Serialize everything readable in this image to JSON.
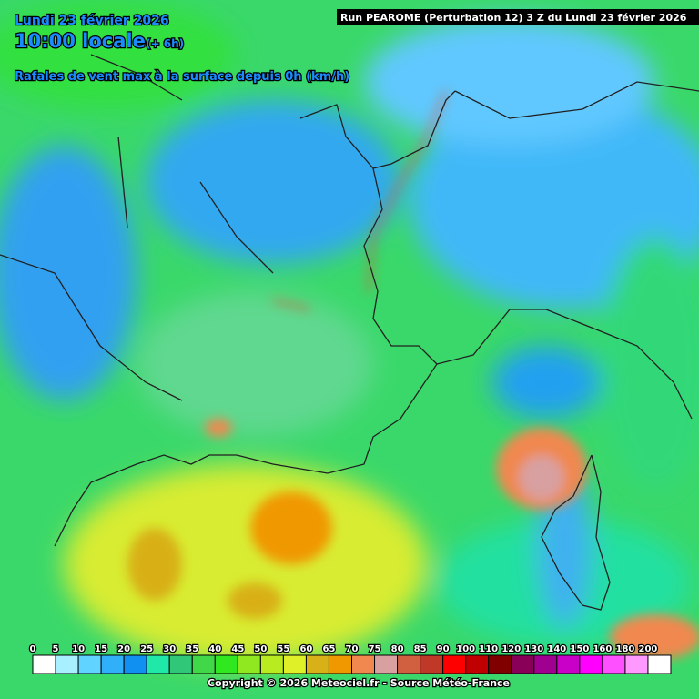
{
  "header": {
    "date": "Lundi 23 février 2026",
    "time": "10:00 locale",
    "offset": "(+ 6h)",
    "parameter": "Rafales de vent max à la surface depuis 0h (km/h)",
    "run": "Run PEAROME (Perturbation 12) 3 Z du Lundi 23 février 2026"
  },
  "legend": {
    "items": [
      {
        "value": 0,
        "color": "#ffffff"
      },
      {
        "value": 5,
        "color": "#a8f0ff"
      },
      {
        "value": 10,
        "color": "#60d4ff"
      },
      {
        "value": 15,
        "color": "#30b0f8"
      },
      {
        "value": 20,
        "color": "#1090f0"
      },
      {
        "value": 25,
        "color": "#20e8a8"
      },
      {
        "value": 30,
        "color": "#30c878"
      },
      {
        "value": 35,
        "color": "#40d848"
      },
      {
        "value": 40,
        "color": "#30e820"
      },
      {
        "value": 45,
        "color": "#90e820"
      },
      {
        "value": 50,
        "color": "#b8ec20"
      },
      {
        "value": 55,
        "color": "#e0f028"
      },
      {
        "value": 60,
        "color": "#d8b018"
      },
      {
        "value": 65,
        "color": "#f09800"
      },
      {
        "value": 70,
        "color": "#f08850"
      },
      {
        "value": 75,
        "color": "#d8a0a0"
      },
      {
        "value": 80,
        "color": "#d06040"
      },
      {
        "value": 85,
        "color": "#c03828"
      },
      {
        "value": 90,
        "color": "#ff0000"
      },
      {
        "value": 100,
        "color": "#c00000"
      },
      {
        "value": 110,
        "color": "#800000"
      },
      {
        "value": 120,
        "color": "#880058"
      },
      {
        "value": 130,
        "color": "#a00090"
      },
      {
        "value": 140,
        "color": "#c800c8"
      },
      {
        "value": 150,
        "color": "#ff00ff"
      },
      {
        "value": 160,
        "color": "#ff50ff"
      },
      {
        "value": 180,
        "color": "#ff98ff"
      },
      {
        "value": 200,
        "color": "#ffffff"
      }
    ]
  },
  "footer": {
    "copyright": "Copyright © 2026 Meteociel.fr - Source Météo-France"
  }
}
